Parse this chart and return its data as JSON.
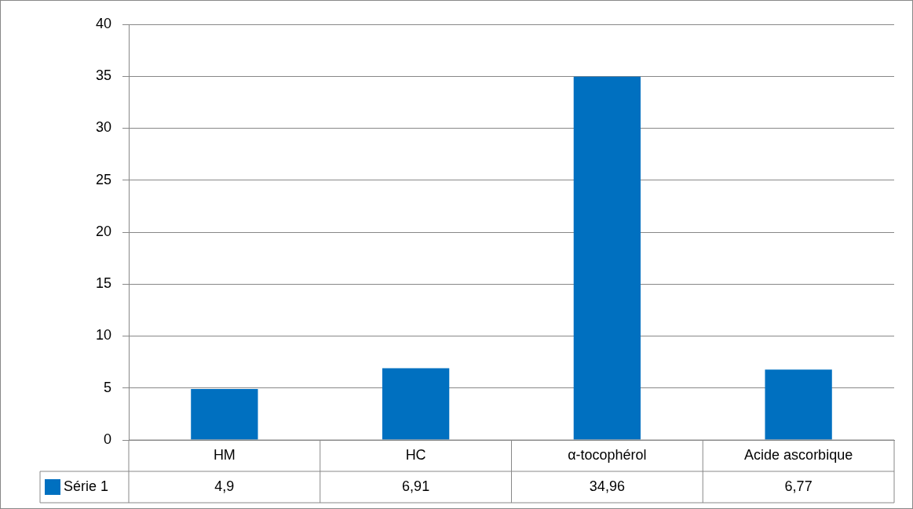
{
  "chart_data": {
    "type": "bar",
    "categories": [
      "HM",
      "HC",
      "α-tocophérol",
      "Acide ascorbique"
    ],
    "series": [
      {
        "name": "Série 1",
        "color": "#0070c0",
        "values": [
          4.9,
          6.91,
          34.96,
          6.77
        ],
        "value_labels": [
          "4,9",
          "6,91",
          "34,96",
          "6,77"
        ]
      }
    ],
    "ylim": [
      0,
      40
    ],
    "yticks": [
      0,
      5,
      10,
      15,
      20,
      25,
      30,
      35,
      40
    ],
    "grid": "y",
    "legend": "bottom"
  }
}
